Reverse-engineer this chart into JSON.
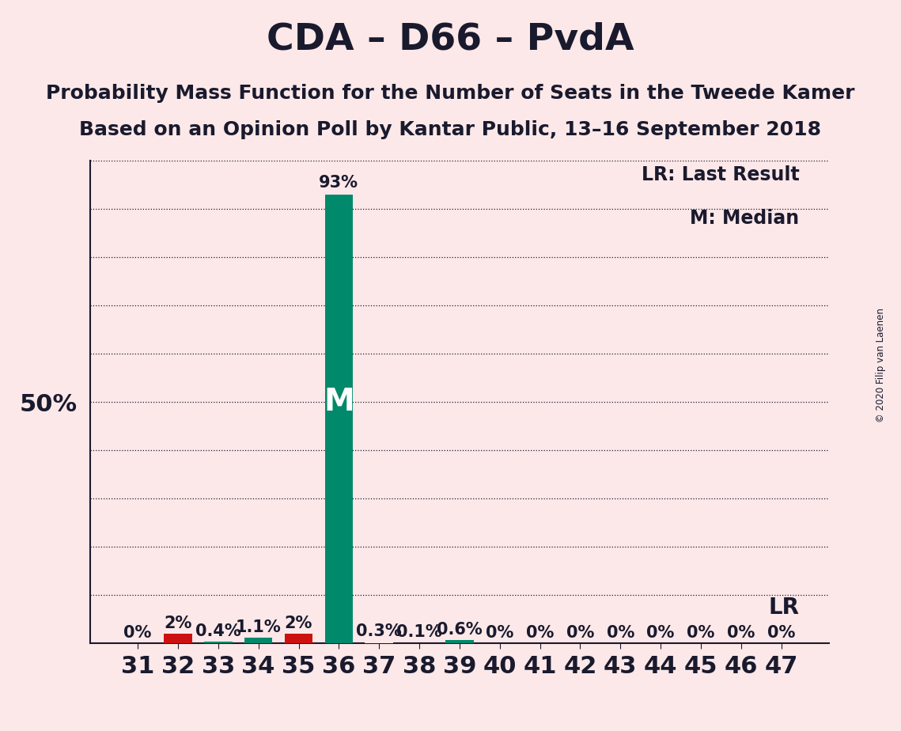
{
  "title": "CDA – D66 – PvdA",
  "subtitle1": "Probability Mass Function for the Number of Seats in the Tweede Kamer",
  "subtitle2": "Based on an Opinion Poll by Kantar Public, 13–16 September 2018",
  "copyright": "© 2020 Filip van Laenen",
  "legend_lr": "LR: Last Result",
  "legend_m": "M: Median",
  "background_color": "#fce8e8",
  "bar_color_green": "#00896b",
  "bar_color_red": "#cc1111",
  "seats": [
    31,
    32,
    33,
    34,
    35,
    36,
    37,
    38,
    39,
    40,
    41,
    42,
    43,
    44,
    45,
    46,
    47
  ],
  "values": [
    0.0,
    2.0,
    0.4,
    1.1,
    2.0,
    93.0,
    0.3,
    0.1,
    0.6,
    0.0,
    0.0,
    0.0,
    0.0,
    0.0,
    0.0,
    0.0,
    0.0
  ],
  "bar_colors": [
    "#fce8e8",
    "#cc1111",
    "#00896b",
    "#00896b",
    "#cc1111",
    "#00896b",
    "#fce8e8",
    "#fce8e8",
    "#00896b",
    "#fce8e8",
    "#fce8e8",
    "#fce8e8",
    "#fce8e8",
    "#fce8e8",
    "#fce8e8",
    "#fce8e8",
    "#fce8e8"
  ],
  "labels": [
    "0%",
    "2%",
    "0.4%",
    "1.1%",
    "2%",
    "93%",
    "0.3%",
    "0.1%",
    "0.6%",
    "0%",
    "0%",
    "0%",
    "0%",
    "0%",
    "0%",
    "0%",
    "0%"
  ],
  "median_seat": 36,
  "lr_value": 10.0,
  "ylim": [
    0,
    100
  ],
  "ylabel_50": "50%",
  "grid_color": "#1a1a2e",
  "title_fontsize": 34,
  "subtitle_fontsize": 18,
  "axis_fontsize": 22,
  "label_fontsize": 15,
  "median_label_fontsize": 28,
  "bar_width": 0.7
}
